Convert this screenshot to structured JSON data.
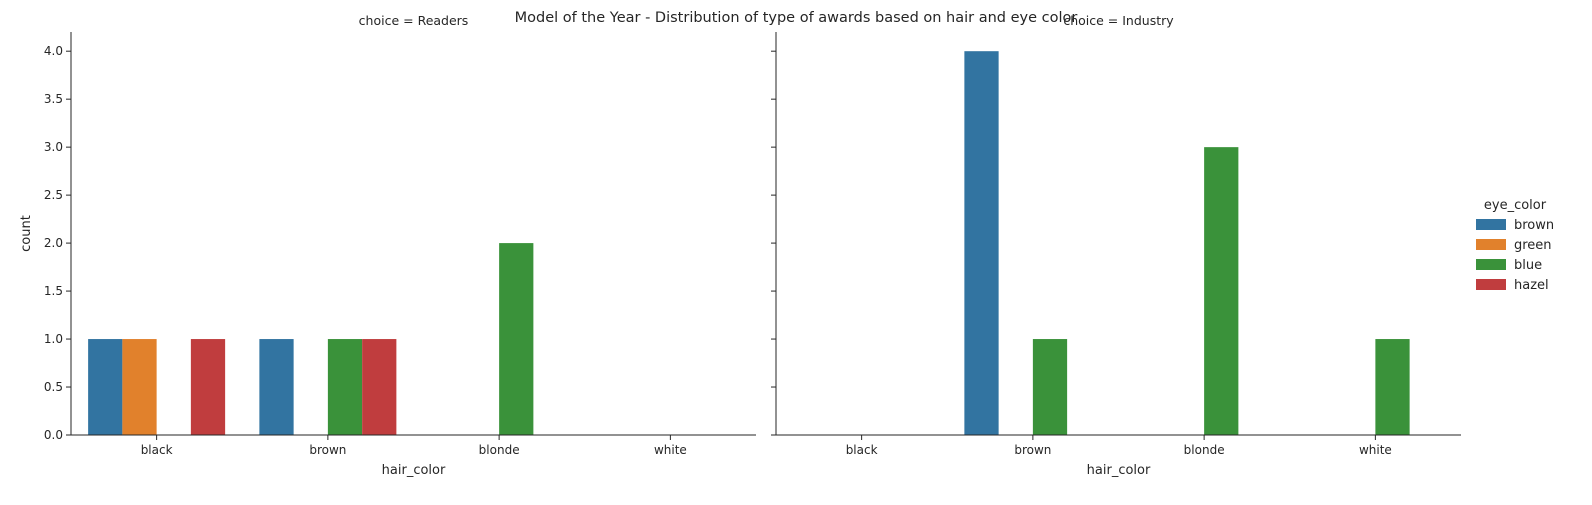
{
  "chart_data": {
    "type": "bar",
    "title": "Model of the Year - Distribution of type of awards based on hair and eye color",
    "xlabel": "hair_color",
    "ylabel": "count",
    "categories": [
      "black",
      "brown",
      "blonde",
      "white"
    ],
    "ylim": [
      0,
      4.2
    ],
    "yticks": [
      "0.0",
      "0.5",
      "1.0",
      "1.5",
      "2.0",
      "2.5",
      "3.0",
      "3.5",
      "4.0"
    ],
    "grid": false,
    "legend": {
      "title": "eye_color",
      "placement": "right",
      "entries": [
        "brown",
        "green",
        "blue",
        "hazel"
      ]
    },
    "hue_colors": {
      "brown": "#3274a1",
      "green": "#e1812c",
      "blue": "#3a923a",
      "hazel": "#c03d3e"
    },
    "facets": [
      {
        "title": "choice = Readers",
        "series": [
          {
            "name": "brown",
            "values": [
              1,
              1,
              0,
              0
            ]
          },
          {
            "name": "green",
            "values": [
              1,
              0,
              0,
              0
            ]
          },
          {
            "name": "blue",
            "values": [
              0,
              1,
              2,
              0
            ]
          },
          {
            "name": "hazel",
            "values": [
              1,
              1,
              0,
              0
            ]
          }
        ]
      },
      {
        "title": "choice = Industry",
        "series": [
          {
            "name": "brown",
            "values": [
              0,
              4,
              0,
              0
            ]
          },
          {
            "name": "green",
            "values": [
              0,
              0,
              0,
              0
            ]
          },
          {
            "name": "blue",
            "values": [
              0,
              1,
              3,
              1
            ]
          },
          {
            "name": "hazel",
            "values": [
              0,
              0,
              0,
              0
            ]
          }
        ]
      }
    ]
  }
}
